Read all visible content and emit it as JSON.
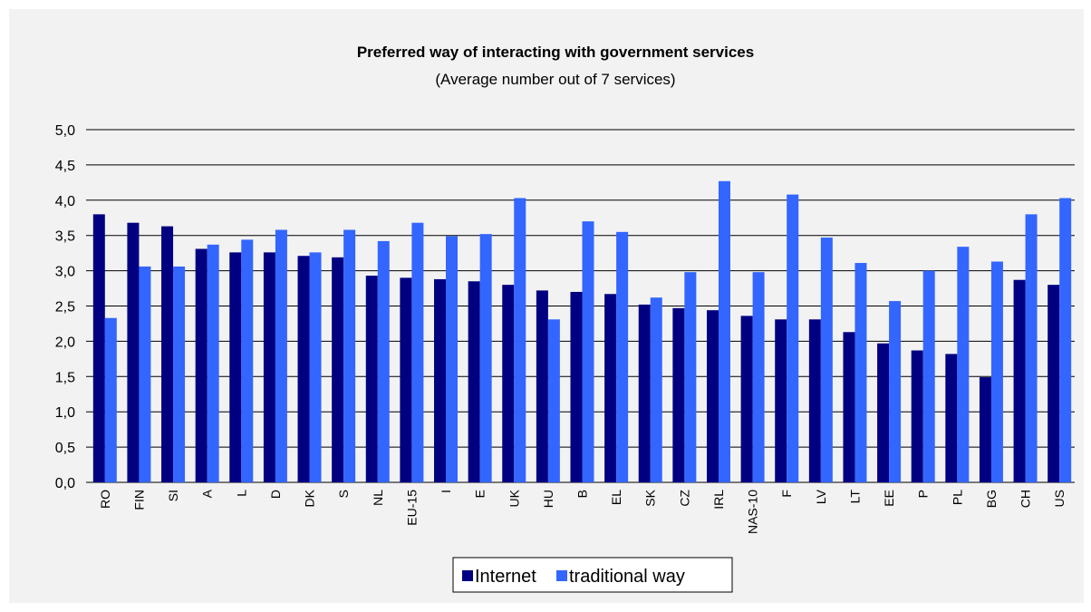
{
  "chart_data": {
    "type": "bar",
    "title": "Preferred way of interacting with government services",
    "subtitle": "(Average number out of 7 services)",
    "xlabel": "",
    "ylabel": "",
    "ylim": [
      0,
      5
    ],
    "ytick_step": 0.5,
    "yticks": [
      "0,0",
      "0,5",
      "1,0",
      "1,5",
      "2,0",
      "2,5",
      "3,0",
      "3,5",
      "4,0",
      "4,5",
      "5,0"
    ],
    "grid": true,
    "legend_position": "bottom-center",
    "categories": [
      "RO",
      "FIN",
      "SI",
      "A",
      "L",
      "D",
      "DK",
      "S",
      "NL",
      "EU-15",
      "I",
      "E",
      "UK",
      "HU",
      "B",
      "EL",
      "SK",
      "CZ",
      "IRL",
      "NAS-10",
      "F",
      "LV",
      "LT",
      "EE",
      "P",
      "PL",
      "BG",
      "CH",
      "US"
    ],
    "series": [
      {
        "name": "Internet",
        "color": "#000080",
        "values": [
          3.8,
          3.68,
          3.63,
          3.31,
          3.26,
          3.26,
          3.21,
          3.19,
          2.93,
          2.9,
          2.88,
          2.85,
          2.8,
          2.72,
          2.7,
          2.67,
          2.52,
          2.47,
          2.44,
          2.36,
          2.31,
          2.31,
          2.13,
          1.97,
          1.87,
          1.82,
          1.49,
          2.87,
          2.8
        ]
      },
      {
        "name": "traditional way",
        "color": "#3366ff",
        "values": [
          2.33,
          3.06,
          3.06,
          3.37,
          3.44,
          3.58,
          3.26,
          3.58,
          3.42,
          3.68,
          3.49,
          3.52,
          4.03,
          2.31,
          3.7,
          3.55,
          2.62,
          2.98,
          4.27,
          2.98,
          4.08,
          3.47,
          3.11,
          2.57,
          3.0,
          3.34,
          3.13,
          3.8,
          4.03
        ]
      }
    ]
  }
}
